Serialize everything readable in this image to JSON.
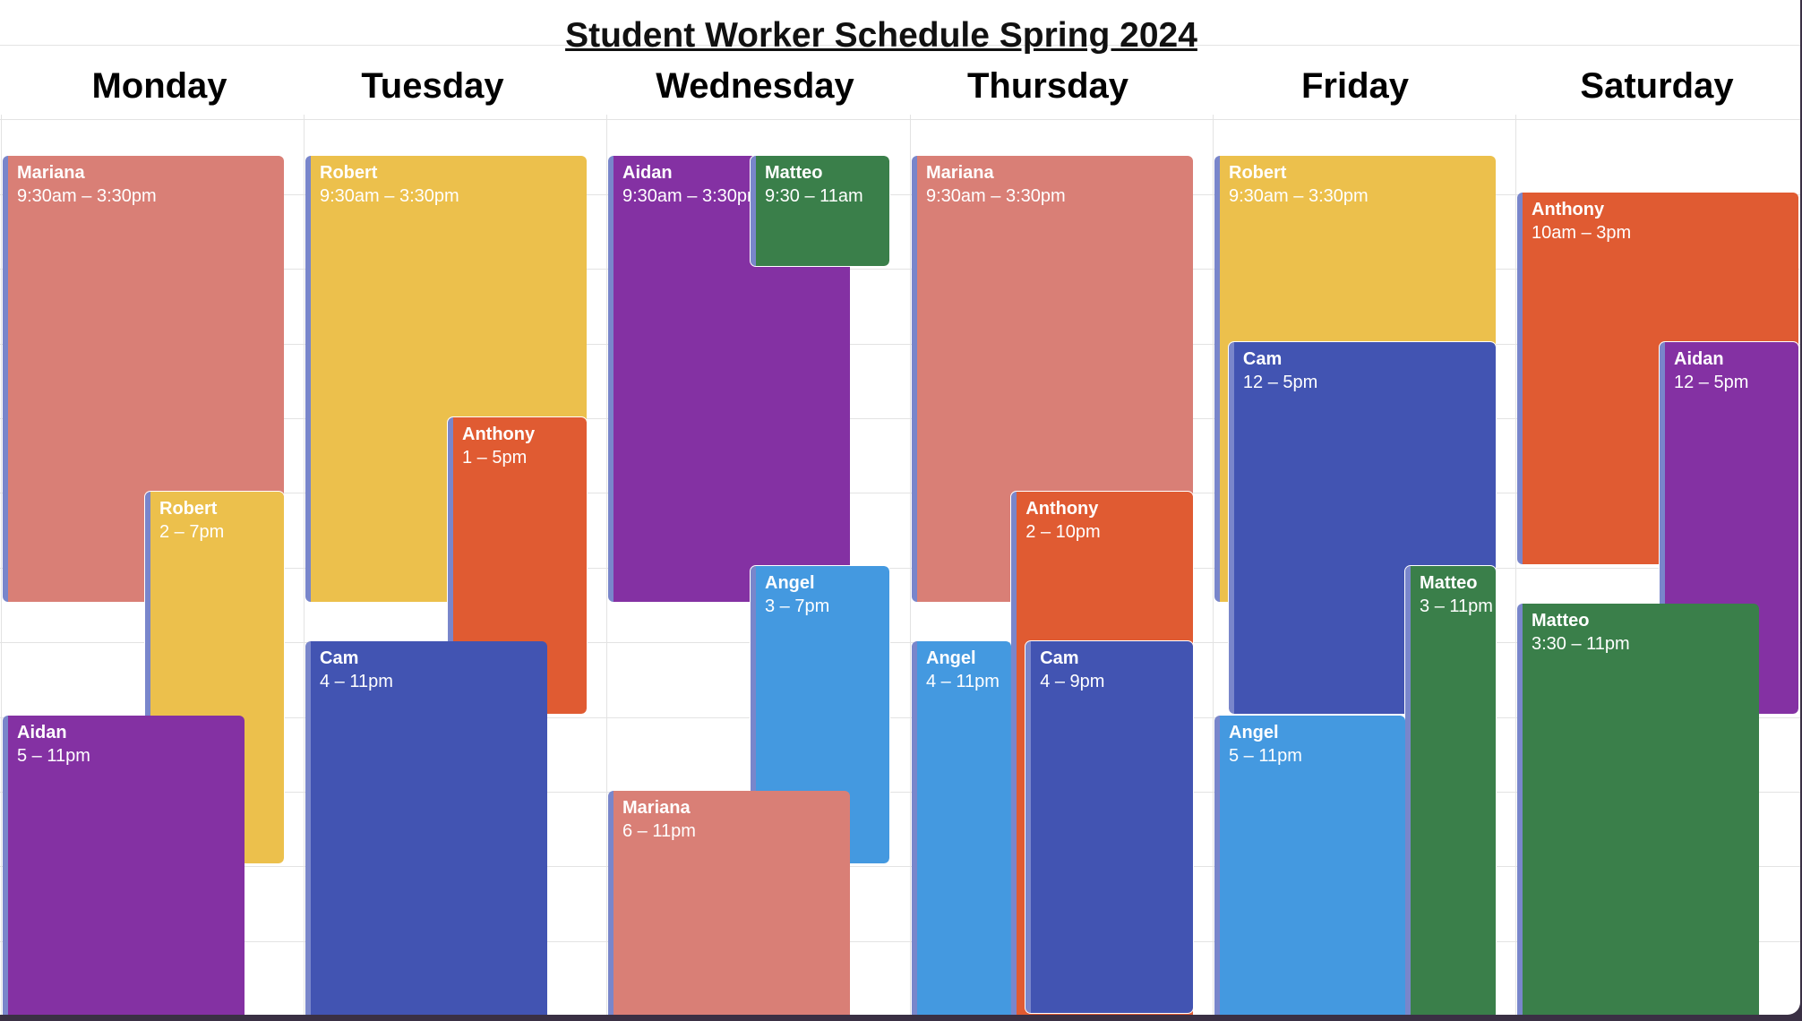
{
  "title": "Student Worker Schedule Spring 2024",
  "days": [
    "Monday",
    "Tuesday",
    "Wednesday",
    "Thursday",
    "Friday",
    "Saturday"
  ],
  "colors": {
    "Mariana": "#d97f76",
    "Robert": "#ecc04c",
    "Aidan": "#8431a3",
    "Cam": "#4254b2",
    "Anthony": "#e05b32",
    "Matteo": "#3a7f4a",
    "Angel": "#4499e0",
    "accent_stripe": "#7986cb"
  },
  "events": [
    {
      "day": "Monday",
      "name": "Mariana",
      "time": "9:30am – 3:30pm"
    },
    {
      "day": "Monday",
      "name": "Robert",
      "time": "2 – 7pm"
    },
    {
      "day": "Monday",
      "name": "Aidan",
      "time": "5 – 11pm"
    },
    {
      "day": "Tuesday",
      "name": "Robert",
      "time": "9:30am – 3:30pm"
    },
    {
      "day": "Tuesday",
      "name": "Anthony",
      "time": "1 – 5pm"
    },
    {
      "day": "Tuesday",
      "name": "Cam",
      "time": "4 – 11pm"
    },
    {
      "day": "Wednesday",
      "name": "Aidan",
      "time": "9:30am – 3:30pm"
    },
    {
      "day": "Wednesday",
      "name": "Matteo",
      "time": "9:30 – 11am"
    },
    {
      "day": "Wednesday",
      "name": "Angel",
      "time": "3 – 7pm"
    },
    {
      "day": "Wednesday",
      "name": "Mariana",
      "time": "6 – 11pm"
    },
    {
      "day": "Thursday",
      "name": "Mariana",
      "time": "9:30am – 3:30pm"
    },
    {
      "day": "Thursday",
      "name": "Anthony",
      "time": "2 – 10pm"
    },
    {
      "day": "Thursday",
      "name": "Angel",
      "time": "4 – 11pm"
    },
    {
      "day": "Thursday",
      "name": "Cam",
      "time": "4 – 9pm"
    },
    {
      "day": "Friday",
      "name": "Robert",
      "time": "9:30am – 3:30pm"
    },
    {
      "day": "Friday",
      "name": "Cam",
      "time": "12 – 5pm"
    },
    {
      "day": "Friday",
      "name": "Matteo",
      "time": "3 – 11pm"
    },
    {
      "day": "Friday",
      "name": "Angel",
      "time": "5 – 11pm"
    },
    {
      "day": "Saturday",
      "name": "Anthony",
      "time": "10am – 3pm"
    },
    {
      "day": "Saturday",
      "name": "Aidan",
      "time": "12 – 5pm"
    },
    {
      "day": "Saturday",
      "name": "Matteo",
      "time": "3:30 – 11pm"
    }
  ]
}
